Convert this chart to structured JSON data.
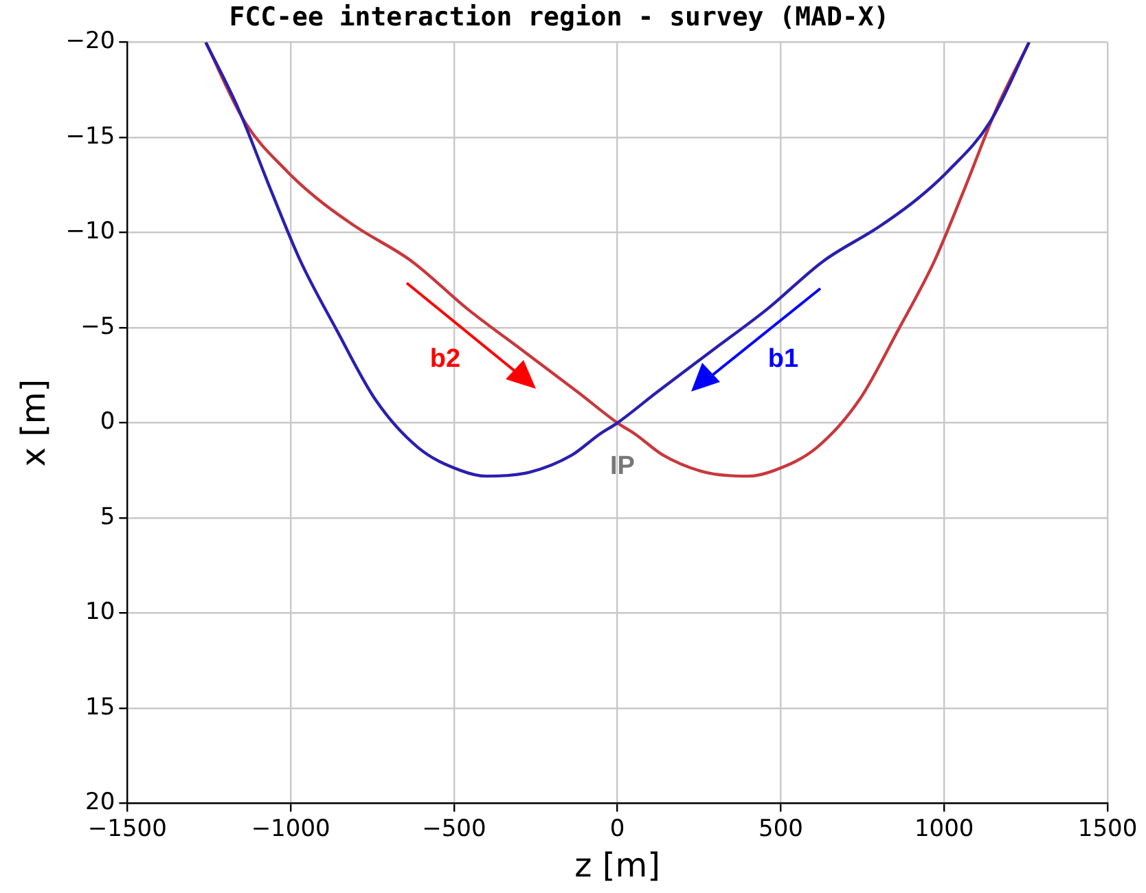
{
  "chart_data": {
    "type": "line",
    "title": "FCC-ee interaction region - survey (MAD-X)",
    "xlabel": "z [m]",
    "ylabel": "x [m]",
    "xlim": [
      -1500,
      1500
    ],
    "ylim": [
      20,
      -20
    ],
    "xticks": [
      {
        "value": -1500,
        "label": "−1500"
      },
      {
        "value": -1000,
        "label": "−1000"
      },
      {
        "value": -500,
        "label": "−500"
      },
      0,
      500,
      1000,
      1500
    ],
    "yticks": [
      {
        "value": -20,
        "label": "−20"
      },
      {
        "value": -15,
        "label": "−15"
      },
      {
        "value": -10,
        "label": "−10"
      },
      {
        "value": -5,
        "label": "−5"
      },
      0,
      5,
      10,
      15,
      20
    ],
    "grid": true,
    "legend": false,
    "marker": "none",
    "line_style": "solid",
    "series": [
      {
        "color": "#2a1fb0",
        "x": [
          -1260,
          -1160,
          -1060,
          -970,
          -860,
          -740,
          -610,
          -480,
          -400,
          -270,
          -140,
          -55,
          0,
          120,
          290,
          460,
          630,
          800,
          920,
          1010,
          1140,
          1260
        ],
        "values": [
          -20,
          -16.5,
          -12.2,
          -8.5,
          -4.9,
          -1.2,
          1.3,
          2.5,
          2.8,
          2.6,
          1.7,
          0.6,
          0,
          -1.6,
          -3.8,
          -6.0,
          -8.5,
          -10.3,
          -11.8,
          -13.2,
          -15.8,
          -20
        ]
      },
      {
        "color": "#c8383c",
        "x": [
          -1260,
          -1140,
          -1010,
          -920,
          -800,
          -630,
          -460,
          -290,
          -120,
          0,
          55,
          140,
          270,
          400,
          480,
          610,
          740,
          860,
          970,
          1060,
          1160,
          1260
        ],
        "values": [
          -20,
          -15.8,
          -13.2,
          -11.8,
          -10.3,
          -8.5,
          -6.0,
          -3.8,
          -1.6,
          0,
          0.6,
          1.7,
          2.6,
          2.8,
          2.5,
          1.3,
          -1.2,
          -4.9,
          -8.5,
          -12.2,
          -16.5,
          -20
        ]
      }
    ],
    "annotations": [
      "b2",
      "b1",
      "IP"
    ]
  }
}
